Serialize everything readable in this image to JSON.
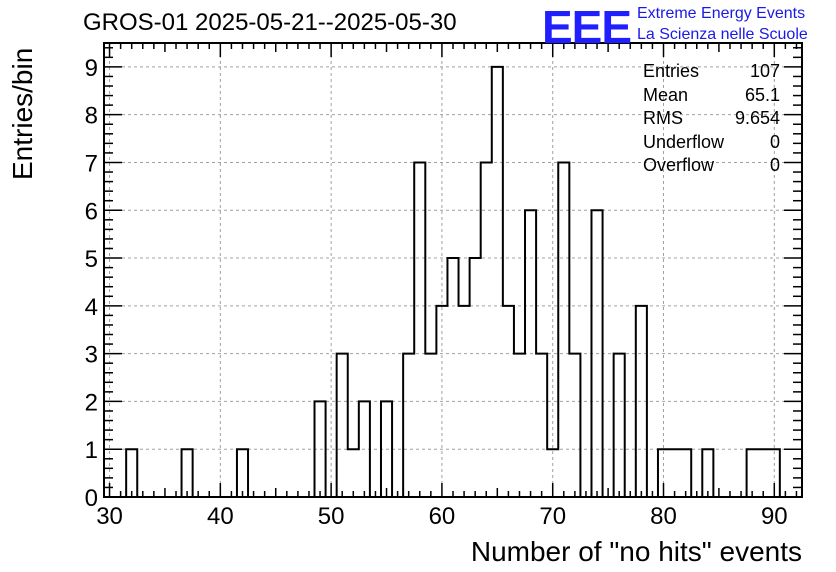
{
  "header": {
    "title": "GROS-01 2025-05-21--2025-05-30",
    "logo_mark": "EEE",
    "logo_line1": "Extreme Energy Events",
    "logo_line2": "La Scienza nelle Scuole"
  },
  "stats": {
    "entries_label": "Entries",
    "entries_value": "107",
    "mean_label": "Mean",
    "mean_value": "65.1",
    "rms_label": "RMS",
    "rms_value": "9.654",
    "underflow_label": "Underflow",
    "underflow_value": "0",
    "overflow_label": "Overflow",
    "overflow_value": "0"
  },
  "chart_data": {
    "type": "histogram",
    "title": "GROS-01 2025-05-21--2025-05-30",
    "xlabel": "Number of \"no hits\" events",
    "ylabel": "Entries/bin",
    "xlim": [
      29.5,
      92.5
    ],
    "ylim": [
      0,
      9.5
    ],
    "bin_width": 1,
    "xticks": [
      30,
      40,
      50,
      60,
      70,
      80,
      90
    ],
    "yticks": [
      0,
      1,
      2,
      3,
      4,
      5,
      6,
      7,
      8,
      9
    ],
    "grid": true,
    "bins": [
      {
        "x": 32,
        "count": 1
      },
      {
        "x": 37,
        "count": 1
      },
      {
        "x": 42,
        "count": 1
      },
      {
        "x": 49,
        "count": 2
      },
      {
        "x": 51,
        "count": 3
      },
      {
        "x": 52,
        "count": 1
      },
      {
        "x": 53,
        "count": 2
      },
      {
        "x": 55,
        "count": 2
      },
      {
        "x": 57,
        "count": 3
      },
      {
        "x": 58,
        "count": 7
      },
      {
        "x": 59,
        "count": 3
      },
      {
        "x": 60,
        "count": 4
      },
      {
        "x": 61,
        "count": 5
      },
      {
        "x": 62,
        "count": 4
      },
      {
        "x": 63,
        "count": 5
      },
      {
        "x": 64,
        "count": 7
      },
      {
        "x": 65,
        "count": 9
      },
      {
        "x": 66,
        "count": 4
      },
      {
        "x": 67,
        "count": 3
      },
      {
        "x": 68,
        "count": 6
      },
      {
        "x": 69,
        "count": 3
      },
      {
        "x": 70,
        "count": 1
      },
      {
        "x": 71,
        "count": 7
      },
      {
        "x": 72,
        "count": 3
      },
      {
        "x": 74,
        "count": 6
      },
      {
        "x": 76,
        "count": 3
      },
      {
        "x": 78,
        "count": 4
      },
      {
        "x": 80,
        "count": 1
      },
      {
        "x": 81,
        "count": 1
      },
      {
        "x": 82,
        "count": 1
      },
      {
        "x": 84,
        "count": 1
      },
      {
        "x": 88,
        "count": 1
      },
      {
        "x": 89,
        "count": 1
      },
      {
        "x": 90,
        "count": 1
      }
    ]
  }
}
